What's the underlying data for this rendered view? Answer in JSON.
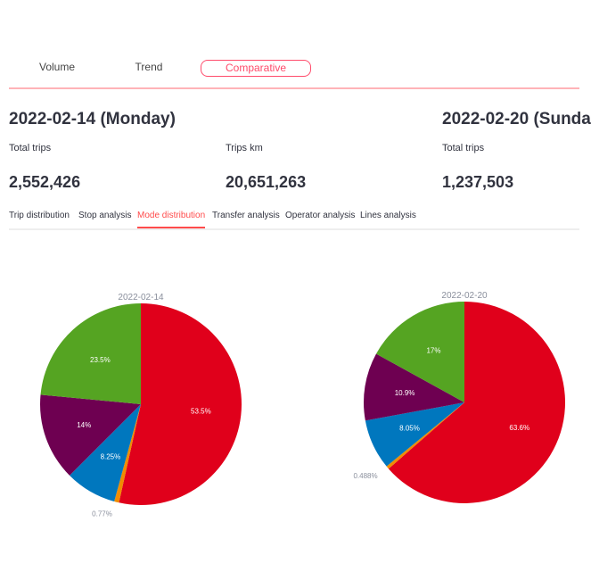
{
  "top_tabs": [
    {
      "label": "Volume"
    },
    {
      "label": "Trend"
    },
    {
      "label": "Comparative",
      "active": true
    }
  ],
  "days": [
    {
      "title": "2022-02-14 (Monday)",
      "metrics": [
        {
          "label": "Total trips",
          "value": "2,552,426"
        },
        {
          "label": "Trips km",
          "value": "20,651,263"
        }
      ]
    },
    {
      "title": "2022-02-20 (Sunda",
      "metrics": [
        {
          "label": "Total trips",
          "value": "1,237,503"
        }
      ]
    }
  ],
  "sub_tabs": [
    {
      "label": "Trip distribution"
    },
    {
      "label": "Stop analysis"
    },
    {
      "label": "Mode distribution",
      "active": true
    },
    {
      "label": "Transfer analysis"
    },
    {
      "label": "Operator analysis"
    },
    {
      "label": "Lines analysis"
    }
  ],
  "colors": {
    "accent": "#ff4b6b",
    "red": "#e0001b",
    "orange": "#f08c00",
    "blue": "#0077be",
    "purple": "#6e0051",
    "green": "#55a422"
  },
  "chart_data": [
    {
      "type": "pie",
      "title": "2022-02-14",
      "slices": [
        {
          "value": 53.5,
          "label": "53.5%",
          "color": "#e0001b"
        },
        {
          "value": 0.77,
          "label": "0.77%",
          "color": "#f08c00"
        },
        {
          "value": 8.25,
          "label": "8.25%",
          "color": "#0077be"
        },
        {
          "value": 14,
          "label": "14%",
          "color": "#6e0051"
        },
        {
          "value": 23.5,
          "label": "23.5%",
          "color": "#55a422"
        }
      ]
    },
    {
      "type": "pie",
      "title": "2022-02-20",
      "slices": [
        {
          "value": 63.6,
          "label": "63.6%",
          "color": "#e0001b"
        },
        {
          "value": 0.488,
          "label": "0.488%",
          "color": "#f08c00"
        },
        {
          "value": 8.05,
          "label": "8.05%",
          "color": "#0077be"
        },
        {
          "value": 10.9,
          "label": "10.9%",
          "color": "#6e0051"
        },
        {
          "value": 17,
          "label": "17%",
          "color": "#55a422"
        }
      ]
    }
  ]
}
